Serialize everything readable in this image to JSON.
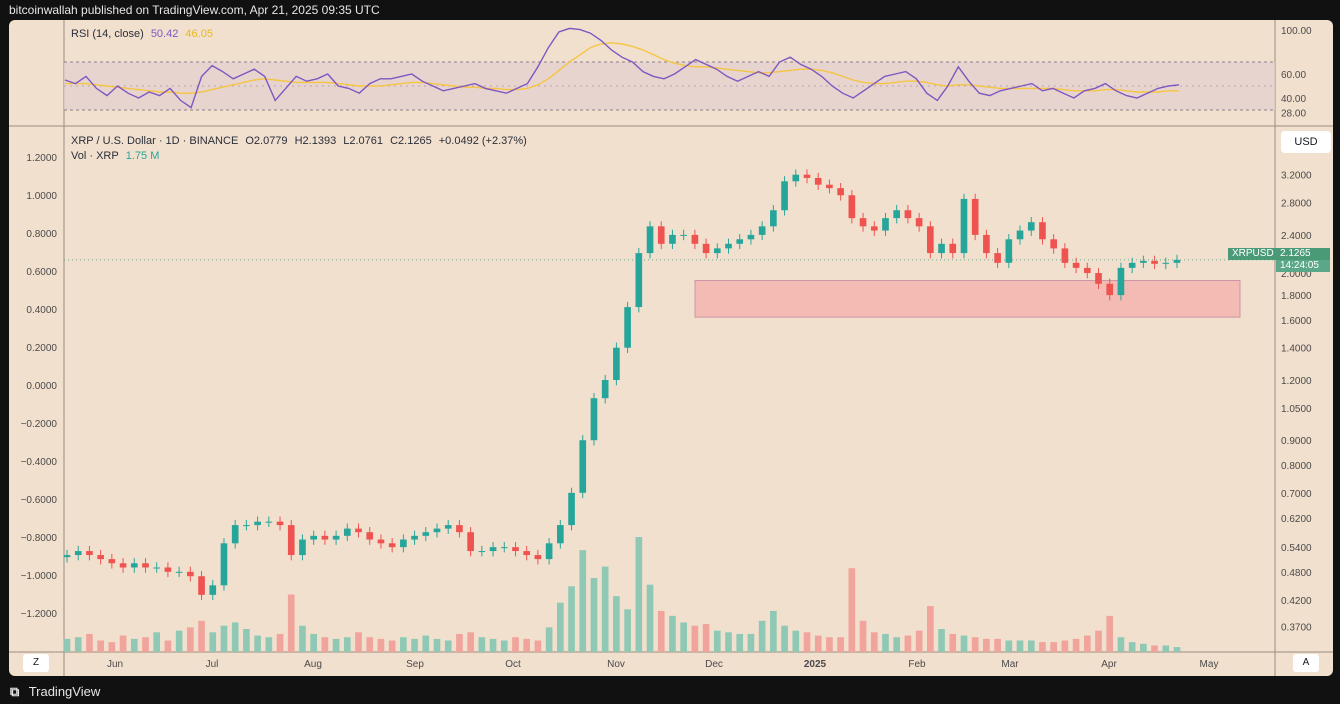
{
  "header": {
    "published": "bitcoinwallah published on TradingView.com, Apr 21, 2025 09:35 UTC"
  },
  "footer": {
    "brand": "TradingView"
  },
  "rsi_legend": {
    "name": "RSI (14, close)",
    "rsi_value": "50.42",
    "ma_value": "46.05"
  },
  "price_legend": {
    "symbol": "XRP / U.S. Dollar · 1D · BINANCE",
    "open": "O2.0779",
    "high": "H2.1393",
    "low": "L2.0761",
    "close": "C2.1265",
    "change": "+0.0492 (+2.37%)"
  },
  "vol_legend": {
    "name": "Vol · XRP",
    "value": "1.75 M"
  },
  "currency_button": "USD",
  "last_price": {
    "ticker": "XRPUSD",
    "price": "2.1265",
    "countdown": "14:24:05"
  },
  "corner_left": "Z",
  "corner_right": "A",
  "colors": {
    "up": "#26a69a",
    "down": "#ef5350",
    "rsi": "#7e57c2",
    "rsi_ma": "#f5c542",
    "zone": "#f4b8b0",
    "background": "#f2e0cf"
  },
  "chart_data": [
    {
      "type": "line",
      "title": "RSI (14, close)",
      "y_ticks": [
        "100.00",
        "60.00",
        "40.00",
        "28.00"
      ],
      "levels": [
        70,
        30
      ],
      "ylim": [
        20,
        100
      ],
      "series": [
        {
          "name": "RSI",
          "values": [
            55,
            52,
            58,
            48,
            42,
            50,
            44,
            40,
            45,
            42,
            48,
            38,
            32,
            58,
            67,
            62,
            56,
            60,
            64,
            58,
            38,
            48,
            58,
            54,
            56,
            60,
            50,
            48,
            44,
            52,
            56,
            56,
            58,
            60,
            54,
            50,
            46,
            48,
            50,
            52,
            48,
            46,
            44,
            48,
            52,
            66,
            82,
            95,
            98,
            97,
            94,
            88,
            80,
            74,
            70,
            62,
            58,
            56,
            60,
            66,
            72,
            68,
            64,
            58,
            54,
            58,
            62,
            58,
            70,
            74,
            68,
            64,
            58,
            50,
            44,
            40,
            46,
            52,
            58,
            60,
            62,
            56,
            44,
            38,
            50,
            66,
            54,
            44,
            42,
            46,
            48,
            50,
            52,
            46,
            48,
            44,
            40,
            46,
            48,
            52,
            46,
            42,
            40,
            44,
            48,
            50,
            51
          ]
        },
        {
          "name": "RSI MA",
          "values": [
            52,
            52,
            52,
            51,
            50,
            49,
            48,
            47,
            46,
            45,
            45,
            44,
            44,
            45,
            47,
            49,
            51,
            53,
            55,
            56,
            55,
            54,
            53,
            53,
            53,
            53,
            52,
            51,
            50,
            50,
            50,
            51,
            52,
            53,
            53,
            52,
            51,
            50,
            49,
            49,
            48,
            48,
            47,
            47,
            48,
            51,
            56,
            63,
            70,
            76,
            82,
            85,
            86,
            85,
            83,
            80,
            76,
            72,
            69,
            67,
            66,
            66,
            65,
            64,
            63,
            62,
            61,
            61,
            62,
            63,
            64,
            64,
            63,
            61,
            58,
            55,
            53,
            52,
            52,
            53,
            54,
            54,
            53,
            51,
            50,
            51,
            51,
            50,
            49,
            48,
            48,
            48,
            48,
            48,
            48,
            47,
            46,
            46,
            46,
            47,
            47,
            46,
            45,
            45,
            45,
            46,
            46
          ]
        }
      ]
    },
    {
      "type": "candlestick",
      "title": "XRP / U.S. Dollar · 1D · BINANCE",
      "x_ticks": [
        "Jun",
        "Jul",
        "Aug",
        "Sep",
        "Oct",
        "Nov",
        "Dec",
        "2025",
        "Feb",
        "Mar",
        "Apr",
        "May"
      ],
      "y_ticks_right": [
        "3.2000",
        "2.8000",
        "2.4000",
        "2.0000",
        "1.8000",
        "1.6000",
        "1.4000",
        "1.2000",
        "1.0500",
        "0.9000",
        "0.8000",
        "0.7000",
        "0.6200",
        "0.5400",
        "0.4800",
        "0.4200",
        "0.3700"
      ],
      "y_ticks_left": [
        "1.2000",
        "1.0000",
        "0.8000",
        "0.6000",
        "0.4000",
        "0.2000",
        "0.0000",
        "−0.2000",
        "−0.4000",
        "−0.6000",
        "−0.8000",
        "−1.0000",
        "−1.2000"
      ],
      "scale": "log",
      "ylim": [
        0.34,
        3.6
      ],
      "support_zone": {
        "from": 1.62,
        "to": 1.93
      },
      "series": [
        {
          "name": "Close",
          "values": [
            0.52,
            0.53,
            0.52,
            0.51,
            0.5,
            0.49,
            0.5,
            0.49,
            0.49,
            0.48,
            0.48,
            0.47,
            0.43,
            0.45,
            0.55,
            0.6,
            0.6,
            0.61,
            0.61,
            0.6,
            0.52,
            0.56,
            0.57,
            0.56,
            0.57,
            0.59,
            0.58,
            0.56,
            0.55,
            0.54,
            0.56,
            0.57,
            0.58,
            0.59,
            0.6,
            0.58,
            0.53,
            0.53,
            0.54,
            0.54,
            0.53,
            0.52,
            0.51,
            0.55,
            0.6,
            0.7,
            0.9,
            1.1,
            1.2,
            1.4,
            1.7,
            2.2,
            2.5,
            2.3,
            2.4,
            2.4,
            2.3,
            2.2,
            2.25,
            2.3,
            2.35,
            2.4,
            2.5,
            2.7,
            3.1,
            3.2,
            3.15,
            3.05,
            3.0,
            2.9,
            2.6,
            2.5,
            2.45,
            2.6,
            2.7,
            2.6,
            2.5,
            2.2,
            2.3,
            2.2,
            2.85,
            2.4,
            2.2,
            2.1,
            2.35,
            2.45,
            2.55,
            2.35,
            2.25,
            2.1,
            2.05,
            2.0,
            1.9,
            1.8,
            2.05,
            2.1,
            2.12,
            2.09,
            2.1,
            2.13
          ]
        },
        {
          "name": "Vol · XRP",
          "values": [
            0.8,
            0.9,
            1.1,
            0.7,
            0.6,
            1.0,
            0.8,
            0.9,
            1.2,
            0.7,
            1.3,
            1.5,
            1.9,
            1.2,
            1.6,
            1.8,
            1.4,
            1.0,
            0.9,
            1.1,
            3.5,
            1.6,
            1.1,
            0.9,
            0.8,
            0.9,
            1.2,
            0.9,
            0.8,
            0.7,
            0.9,
            0.8,
            1.0,
            0.8,
            0.7,
            1.1,
            1.2,
            0.9,
            0.8,
            0.7,
            0.9,
            0.8,
            0.7,
            1.5,
            3.0,
            4.0,
            6.2,
            4.5,
            5.2,
            3.4,
            2.6,
            7.0,
            4.1,
            2.5,
            2.2,
            1.8,
            1.6,
            1.7,
            1.3,
            1.2,
            1.1,
            1.1,
            1.9,
            2.5,
            1.6,
            1.3,
            1.2,
            1.0,
            0.9,
            0.9,
            5.1,
            1.9,
            1.2,
            1.1,
            0.9,
            1.0,
            1.3,
            2.8,
            1.4,
            1.1,
            1.0,
            0.9,
            0.8,
            0.8,
            0.7,
            0.7,
            0.7,
            0.6,
            0.6,
            0.7,
            0.8,
            1.0,
            1.3,
            2.2,
            0.9,
            0.6,
            0.5,
            0.4,
            0.4,
            0.3
          ]
        }
      ]
    }
  ]
}
